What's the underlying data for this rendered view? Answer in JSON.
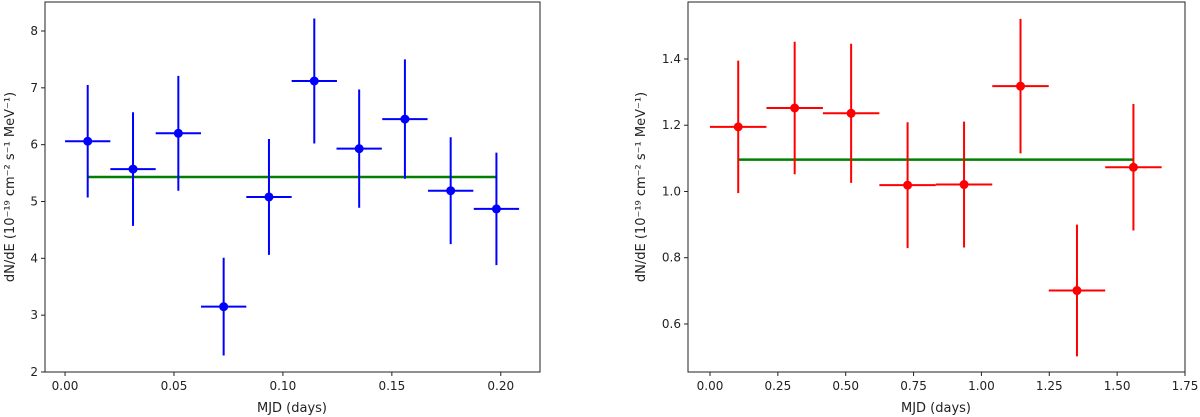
{
  "chart_data": [
    {
      "type": "scatter",
      "title": "",
      "xlabel": "MJD (days)",
      "ylabel": "dN/dE (10⁻¹⁹ cm⁻² s⁻¹ MeV⁻¹)",
      "xlim": [
        -0.0092,
        0.218
      ],
      "ylim": [
        2.0,
        8.51
      ],
      "xticks": [
        0.0,
        0.05,
        0.1,
        0.15,
        0.2
      ],
      "xtick_labels": [
        "0.00",
        "0.05",
        "0.10",
        "0.15",
        "0.20"
      ],
      "yticks": [
        2,
        3,
        4,
        5,
        6,
        7,
        8
      ],
      "ytick_labels": [
        "2",
        "3",
        "4",
        "5",
        "6",
        "7",
        "8"
      ],
      "grid": false,
      "color": "#0000ff",
      "fit_color": "#008000",
      "series": [
        {
          "name": "data",
          "x": [
            0.0104,
            0.0312,
            0.052,
            0.0728,
            0.0936,
            0.1144,
            0.135,
            0.156,
            0.177,
            0.198
          ],
          "y": [
            6.06,
            5.57,
            6.2,
            3.15,
            5.08,
            7.12,
            5.93,
            6.45,
            5.19,
            4.87
          ],
          "xerr": [
            0.0104,
            0.0104,
            0.0104,
            0.0104,
            0.0104,
            0.0104,
            0.0104,
            0.0104,
            0.0104,
            0.0104
          ],
          "yerr": [
            0.99,
            1.0,
            1.01,
            0.86,
            1.02,
            1.1,
            1.04,
            1.05,
            0.94,
            0.99
          ]
        }
      ],
      "fit": {
        "x": [
          0.0104,
          0.198
        ],
        "y": [
          5.43,
          5.43
        ]
      }
    },
    {
      "type": "scatter",
      "title": "",
      "xlabel": "MJD (days)",
      "ylabel": "dN/dE (10⁻¹⁹ cm⁻² s⁻¹ MeV⁻¹)",
      "xlim": [
        -0.081,
        1.75
      ],
      "ylim": [
        0.455,
        1.572
      ],
      "xticks": [
        0.0,
        0.25,
        0.5,
        0.75,
        1.0,
        1.25,
        1.5,
        1.75
      ],
      "xtick_labels": [
        "0.00",
        "0.25",
        "0.50",
        "0.75",
        "1.00",
        "1.25",
        "1.50",
        "1.75"
      ],
      "yticks": [
        0.6,
        0.8,
        1.0,
        1.2,
        1.4
      ],
      "ytick_labels": [
        "0.6",
        "0.8",
        "1.0",
        "1.2",
        "1.4"
      ],
      "grid": false,
      "color": "#ff0000",
      "fit_color": "#008000",
      "series": [
        {
          "name": "data",
          "x": [
            0.104,
            0.312,
            0.52,
            0.728,
            0.936,
            1.144,
            1.352,
            1.56
          ],
          "y": [
            1.195,
            1.252,
            1.236,
            1.019,
            1.021,
            1.318,
            0.701,
            1.073
          ],
          "xerr": [
            0.104,
            0.104,
            0.104,
            0.104,
            0.104,
            0.104,
            0.104,
            0.104
          ],
          "yerr": [
            0.2,
            0.2,
            0.21,
            0.19,
            0.19,
            0.203,
            0.199,
            0.191
          ]
        }
      ],
      "fit": {
        "x": [
          0.104,
          1.56
        ],
        "y": [
          1.096,
          1.096
        ]
      }
    }
  ]
}
